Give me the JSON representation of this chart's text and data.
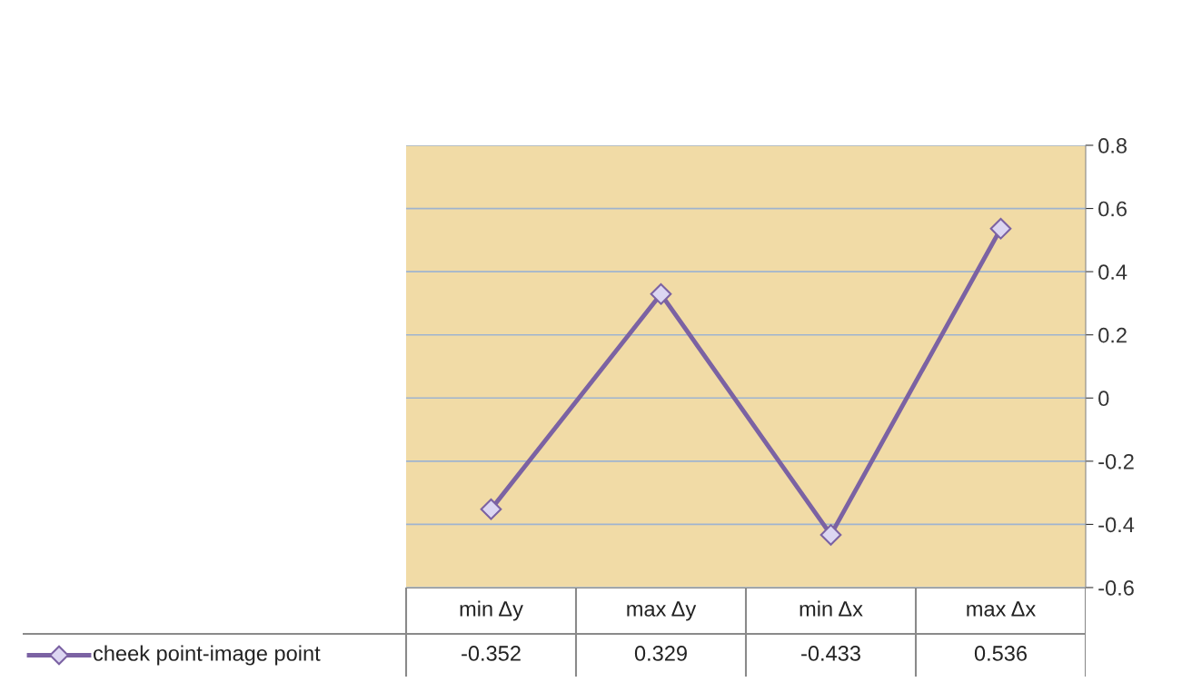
{
  "chart_data": {
    "type": "line",
    "categories": [
      "min Δy",
      "max Δy",
      "min Δx",
      "max Δx"
    ],
    "series": [
      {
        "name": "cheek point-image point",
        "color": "#7b62a3",
        "values": [
          -0.352,
          0.329,
          -0.433,
          0.536
        ]
      }
    ],
    "ylim": [
      -0.6,
      0.8
    ],
    "yticks": [
      -0.6,
      -0.4,
      -0.2,
      0,
      0.2,
      0.4,
      0.6,
      0.8
    ],
    "grid": "y",
    "marker": "diamond",
    "line_style": "solid",
    "data_labels": true,
    "legend": "bottom left"
  }
}
